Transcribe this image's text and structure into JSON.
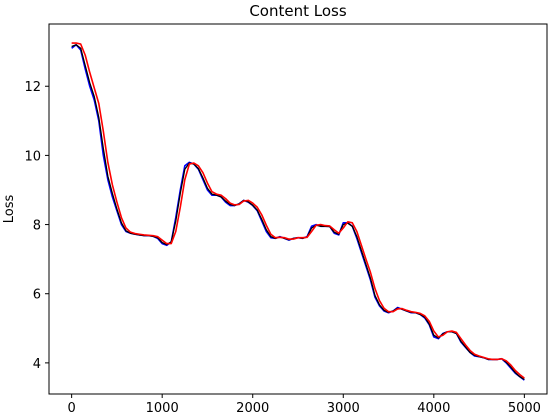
{
  "chart_data": {
    "type": "line",
    "title": "Content Loss",
    "xlabel": "",
    "ylabel": "Loss",
    "xlim": [
      -250,
      5250
    ],
    "ylim": [
      3.1,
      13.8
    ],
    "grid": false,
    "xticks": [
      0,
      1000,
      2000,
      3000,
      4000,
      5000
    ],
    "xtick_labels": [
      "0",
      "1000",
      "2000",
      "3000",
      "4000",
      "5000"
    ],
    "yticks": [
      4,
      6,
      8,
      10,
      12
    ],
    "ytick_labels": [
      "4",
      "6",
      "8",
      "10",
      "12"
    ],
    "series": [
      {
        "color": "#0000ff",
        "x": [
          0,
          50,
          100,
          150,
          200,
          250,
          300,
          350,
          400,
          450,
          500,
          550,
          600,
          650,
          700,
          750,
          800,
          850,
          900,
          950,
          1000,
          1050,
          1100,
          1150,
          1200,
          1250,
          1300,
          1350,
          1400,
          1450,
          1500,
          1550,
          1600,
          1650,
          1700,
          1750,
          1800,
          1850,
          1900,
          1950,
          2000,
          2050,
          2100,
          2150,
          2200,
          2250,
          2300,
          2350,
          2400,
          2450,
          2500,
          2550,
          2600,
          2650,
          2700,
          2750,
          2800,
          2850,
          2900,
          2950,
          3000,
          3050,
          3100,
          3150,
          3200,
          3250,
          3300,
          3350,
          3400,
          3450,
          3500,
          3550,
          3600,
          3650,
          3700,
          3750,
          3800,
          3850,
          3900,
          3950,
          4000,
          4050,
          4100,
          4150,
          4200,
          4250,
          4300,
          4350,
          4400,
          4450,
          4500,
          4550,
          4600,
          4650,
          4700,
          4750,
          4800,
          4850,
          4900,
          4950,
          5000
        ],
        "y": [
          13.1,
          13.2,
          13.05,
          12.5,
          12.0,
          11.6,
          11.0,
          10.0,
          9.3,
          8.8,
          8.4,
          8.0,
          7.8,
          7.75,
          7.72,
          7.7,
          7.68,
          7.68,
          7.66,
          7.6,
          7.45,
          7.4,
          7.5,
          8.2,
          9.0,
          9.7,
          9.8,
          9.75,
          9.6,
          9.3,
          9.0,
          8.85,
          8.85,
          8.8,
          8.65,
          8.55,
          8.55,
          8.6,
          8.7,
          8.65,
          8.55,
          8.4,
          8.1,
          7.8,
          7.62,
          7.6,
          7.65,
          7.6,
          7.55,
          7.6,
          7.62,
          7.6,
          7.65,
          7.95,
          8.0,
          7.95,
          7.95,
          7.95,
          7.75,
          7.7,
          8.05,
          8.05,
          7.95,
          7.6,
          7.2,
          6.8,
          6.4,
          5.9,
          5.65,
          5.5,
          5.45,
          5.5,
          5.6,
          5.55,
          5.5,
          5.45,
          5.45,
          5.4,
          5.3,
          5.1,
          4.75,
          4.7,
          4.85,
          4.9,
          4.9,
          4.85,
          4.6,
          4.45,
          4.3,
          4.2,
          4.18,
          4.15,
          4.1,
          4.1,
          4.1,
          4.12,
          4.0,
          3.85,
          3.7,
          3.6,
          3.5
        ]
      },
      {
        "color": "#000000",
        "x": [
          0,
          50,
          100,
          150,
          200,
          250,
          300,
          350,
          400,
          450,
          500,
          550,
          600,
          650,
          700,
          750,
          800,
          850,
          900,
          950,
          1000,
          1050,
          1100,
          1150,
          1200,
          1250,
          1300,
          1350,
          1400,
          1450,
          1500,
          1550,
          1600,
          1650,
          1700,
          1750,
          1800,
          1850,
          1900,
          1950,
          2000,
          2050,
          2100,
          2150,
          2200,
          2250,
          2300,
          2350,
          2400,
          2450,
          2500,
          2550,
          2600,
          2650,
          2700,
          2750,
          2800,
          2850,
          2900,
          2950,
          3000,
          3050,
          3100,
          3150,
          3200,
          3250,
          3300,
          3350,
          3400,
          3450,
          3500,
          3550,
          3600,
          3650,
          3700,
          3750,
          3800,
          3850,
          3900,
          3950,
          4000,
          4050,
          4100,
          4150,
          4200,
          4250,
          4300,
          4350,
          4400,
          4450,
          4500,
          4550,
          4600,
          4650,
          4700,
          4750,
          4800,
          4850,
          4900,
          4950,
          5000
        ],
        "y": [
          13.15,
          13.2,
          13.1,
          12.6,
          12.1,
          11.7,
          11.1,
          10.2,
          9.4,
          8.9,
          8.45,
          8.05,
          7.82,
          7.75,
          7.72,
          7.7,
          7.68,
          7.68,
          7.66,
          7.62,
          7.48,
          7.42,
          7.5,
          8.1,
          8.9,
          9.6,
          9.78,
          9.75,
          9.62,
          9.35,
          9.05,
          8.88,
          8.85,
          8.8,
          8.68,
          8.58,
          8.55,
          8.6,
          8.7,
          8.66,
          8.56,
          8.42,
          8.15,
          7.85,
          7.65,
          7.6,
          7.64,
          7.6,
          7.56,
          7.6,
          7.62,
          7.6,
          7.64,
          7.9,
          7.98,
          7.95,
          7.95,
          7.94,
          7.78,
          7.72,
          8.0,
          8.04,
          7.95,
          7.65,
          7.25,
          6.85,
          6.45,
          5.95,
          5.68,
          5.52,
          5.46,
          5.5,
          5.58,
          5.55,
          5.5,
          5.46,
          5.45,
          5.4,
          5.32,
          5.12,
          4.8,
          4.72,
          4.84,
          4.9,
          4.9,
          4.85,
          4.62,
          4.46,
          4.3,
          4.22,
          4.18,
          4.15,
          4.1,
          4.1,
          4.1,
          4.12,
          4.02,
          3.88,
          3.72,
          3.6,
          3.52
        ]
      },
      {
        "color": "#ff0000",
        "x": [
          0,
          50,
          100,
          150,
          200,
          250,
          300,
          350,
          400,
          450,
          500,
          550,
          600,
          650,
          700,
          750,
          800,
          850,
          900,
          950,
          1000,
          1050,
          1100,
          1150,
          1200,
          1250,
          1300,
          1350,
          1400,
          1450,
          1500,
          1550,
          1600,
          1650,
          1700,
          1750,
          1800,
          1850,
          1900,
          1950,
          2000,
          2050,
          2100,
          2150,
          2200,
          2250,
          2300,
          2350,
          2400,
          2450,
          2500,
          2550,
          2600,
          2650,
          2700,
          2750,
          2800,
          2850,
          2900,
          2950,
          3000,
          3050,
          3100,
          3150,
          3200,
          3250,
          3300,
          3350,
          3400,
          3450,
          3500,
          3550,
          3600,
          3650,
          3700,
          3750,
          3800,
          3850,
          3900,
          3950,
          4000,
          4050,
          4100,
          4150,
          4200,
          4250,
          4300,
          4350,
          4400,
          4450,
          4500,
          4550,
          4600,
          4650,
          4700,
          4750,
          4800,
          4850,
          4900,
          4950,
          5000
        ],
        "y": [
          13.25,
          13.25,
          13.22,
          12.9,
          12.4,
          11.95,
          11.5,
          10.7,
          9.8,
          9.15,
          8.65,
          8.2,
          7.9,
          7.78,
          7.74,
          7.72,
          7.7,
          7.69,
          7.68,
          7.65,
          7.55,
          7.45,
          7.45,
          7.8,
          8.5,
          9.3,
          9.75,
          9.78,
          9.7,
          9.5,
          9.2,
          8.95,
          8.88,
          8.85,
          8.75,
          8.62,
          8.57,
          8.58,
          8.68,
          8.7,
          8.62,
          8.5,
          8.28,
          7.98,
          7.72,
          7.62,
          7.63,
          7.62,
          7.58,
          7.58,
          7.62,
          7.62,
          7.63,
          7.8,
          7.98,
          8.0,
          7.97,
          7.96,
          7.85,
          7.75,
          7.9,
          8.08,
          8.05,
          7.8,
          7.4,
          7.0,
          6.62,
          6.15,
          5.8,
          5.58,
          5.48,
          5.48,
          5.56,
          5.57,
          5.52,
          5.48,
          5.46,
          5.43,
          5.36,
          5.2,
          4.92,
          4.75,
          4.8,
          4.9,
          4.92,
          4.88,
          4.7,
          4.52,
          4.36,
          4.25,
          4.2,
          4.16,
          4.12,
          4.1,
          4.1,
          4.12,
          4.06,
          3.94,
          3.78,
          3.66,
          3.56
        ]
      }
    ]
  }
}
